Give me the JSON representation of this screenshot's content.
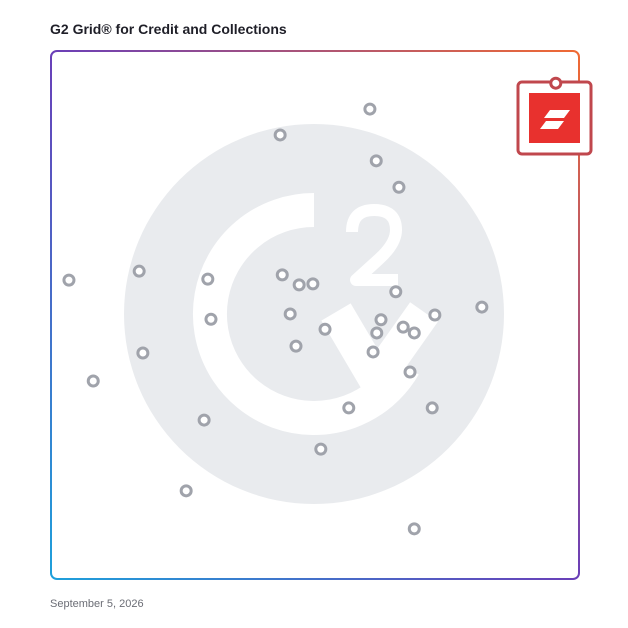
{
  "chart_data": {
    "type": "scatter",
    "title": "G2 Grid® for Credit and Collections",
    "date": "September 5, 2026",
    "xlim": [
      0,
      100
    ],
    "ylim": [
      0,
      100
    ],
    "series": [
      {
        "color": "#a0a3ab",
        "x": [
          60.4,
          43.4,
          61.6,
          65.9,
          3.4,
          16.7,
          29.7,
          43.8,
          47.0,
          49.6,
          65.3,
          81.6,
          72.7,
          30.3,
          45.3,
          51.9,
          62.5,
          61.7,
          66.7,
          68.8,
          17.4,
          46.4,
          61.0,
          8.0,
          68.0,
          56.4,
          72.2,
          29.0,
          51.1,
          25.6,
          68.8
        ],
        "values": [
          89.0,
          84.1,
          79.2,
          74.2,
          56.6,
          58.3,
          56.8,
          57.6,
          55.7,
          55.9,
          54.4,
          51.5,
          50.0,
          49.2,
          50.2,
          47.3,
          49.1,
          46.6,
          47.7,
          46.6,
          42.8,
          44.1,
          43.0,
          37.5,
          39.2,
          32.4,
          32.4,
          30.1,
          24.6,
          16.7,
          9.5
        ]
      },
      {
        "color": "#c0474d",
        "x": [
          95.6
        ],
        "values": [
          93.9
        ]
      }
    ]
  }
}
